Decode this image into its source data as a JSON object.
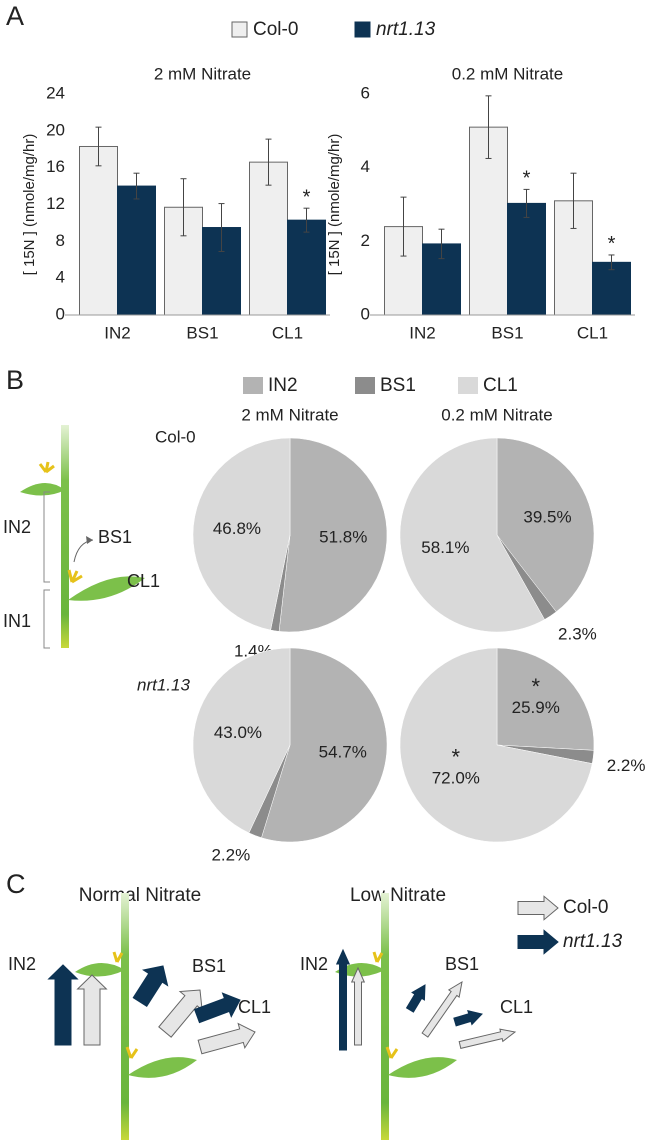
{
  "panel_labels": [
    "A",
    "B",
    "C"
  ],
  "chart_data": [
    {
      "type": "bar",
      "title": "2 mM Nitrate",
      "y_label": "[ 15N ] (nmole/mg/hr)",
      "categories": [
        "IN2",
        "BS1",
        "CL1"
      ],
      "series": [
        {
          "name": "Col-0",
          "color": "#efefef",
          "values": [
            18.3,
            11.7,
            16.6
          ],
          "errors": [
            2.1,
            3.1,
            2.5
          ]
        },
        {
          "name": "nrt1.13",
          "color": "#0d3353",
          "values": [
            14.0,
            9.5,
            10.3
          ],
          "errors": [
            1.4,
            2.6,
            1.3
          ],
          "significance": [
            null,
            null,
            "*"
          ]
        }
      ],
      "ylim": [
        0,
        24
      ],
      "yticks": [
        0,
        4,
        8,
        12,
        16,
        20,
        24
      ],
      "legend": "top"
    },
    {
      "type": "bar",
      "title": "0.2 mM Nitrate",
      "y_label": "[ 15N ] (nmole/mg/hr)",
      "categories": [
        "IN2",
        "BS1",
        "CL1"
      ],
      "series": [
        {
          "color": "#efefef",
          "values": [
            2.4,
            5.1,
            3.1
          ],
          "errors": [
            0.8,
            0.85,
            0.75
          ]
        },
        {
          "color": "#0d3353",
          "values": [
            1.93,
            3.03,
            1.43
          ],
          "errors": [
            0.4,
            0.38,
            0.2
          ],
          "significance": [
            null,
            "*",
            "*"
          ]
        }
      ],
      "ylim": [
        0,
        6
      ],
      "yticks": [
        0,
        2,
        4,
        6
      ]
    },
    {
      "type": "pie",
      "categories": [
        "IN2",
        "BS1",
        "CL1"
      ],
      "colors": [
        "#b3b3b3",
        "#8c8c8c",
        "#d9d9d9"
      ],
      "column_titles": [
        "2 mM Nitrate",
        "0.2 mM Nitrate"
      ],
      "row_labels": [
        "Col-0",
        "nrt1.13"
      ],
      "pies": [
        {
          "values": [
            51.8,
            1.4,
            46.8
          ],
          "value_labels": [
            "51.8%",
            "1.4%",
            "46.8%"
          ]
        },
        {
          "values": [
            39.5,
            2.3,
            58.1
          ],
          "value_labels": [
            "39.5%",
            "2.3%",
            "58.1%"
          ]
        },
        {
          "values": [
            54.7,
            2.2,
            43.0
          ],
          "value_labels": [
            "54.7%",
            "2.2%",
            "43.0%"
          ]
        },
        {
          "values": [
            25.9,
            2.2,
            72.0
          ],
          "value_labels": [
            "25.9%",
            "2.2%",
            "72.0%"
          ],
          "significance": [
            "*",
            null,
            "*"
          ]
        }
      ]
    }
  ],
  "diagram_b": {
    "labels": [
      "IN2",
      "BS1",
      "CL1",
      "IN1"
    ]
  },
  "panel_c": {
    "legend": [
      "Col-0",
      "nrt1.13"
    ],
    "scenes": [
      {
        "title": "Normal Nitrate",
        "labels": [
          "IN2",
          "BS1",
          "CL1"
        ]
      },
      {
        "title": "Low Nitrate",
        "labels": [
          "IN2",
          "BS1",
          "CL1"
        ]
      }
    ]
  }
}
